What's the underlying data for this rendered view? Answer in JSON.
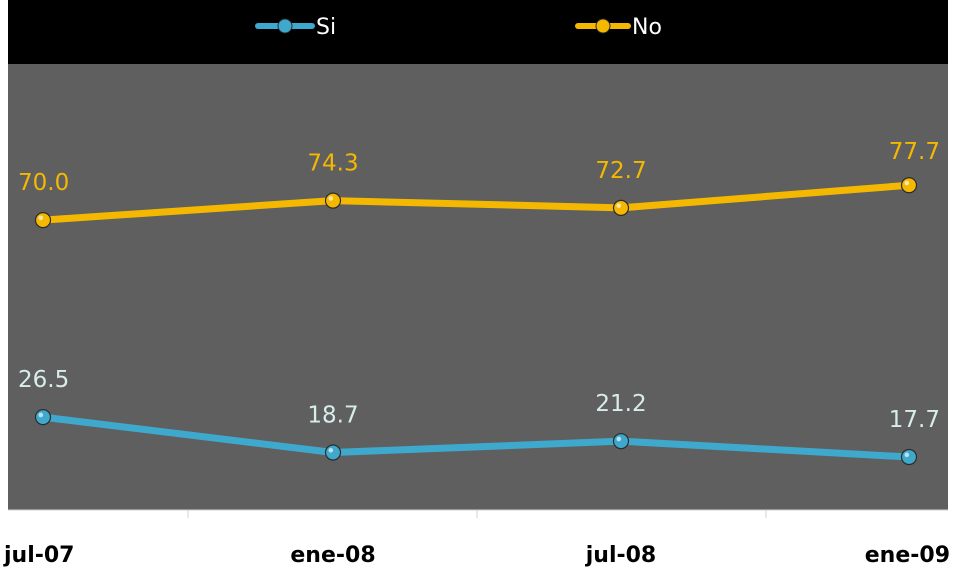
{
  "chart_data": {
    "type": "line",
    "title": "",
    "xlabel": "",
    "ylabel": "",
    "categories": [
      "jul-07",
      "ene-08",
      "jul-08",
      "ene-09"
    ],
    "ylim": [
      0,
      100
    ],
    "grid": false,
    "legend_position": "top-center",
    "series": [
      {
        "name": "Si",
        "color": "#3ea9cd",
        "values": [
          26.5,
          18.7,
          21.2,
          17.7
        ],
        "labels": [
          "26.5",
          "18.7",
          "21.2",
          "17.7"
        ],
        "label_color": "#d9ecec"
      },
      {
        "name": "No",
        "color": "#f5b800",
        "values": [
          70.0,
          74.3,
          72.7,
          77.7
        ],
        "labels": [
          "70.0",
          "74.3",
          "72.7",
          "77.7"
        ],
        "label_color": "#f5b800"
      }
    ]
  },
  "colors": {
    "plot_background": "#5f5f5f",
    "legend_background": "#000000",
    "page_background": "#ffffff"
  }
}
